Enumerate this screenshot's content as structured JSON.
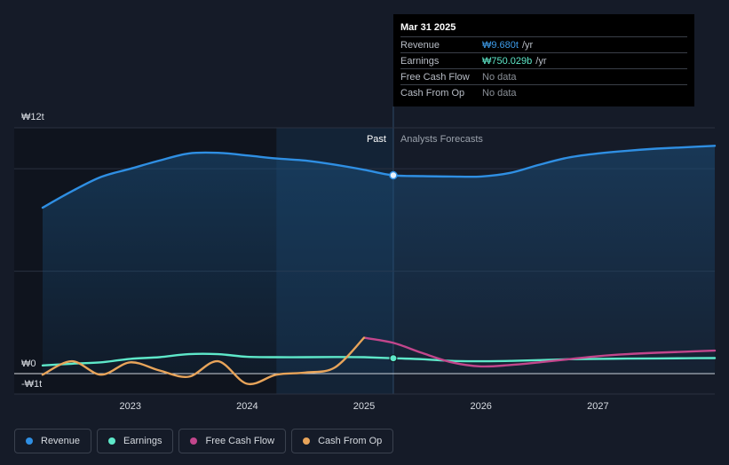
{
  "tooltip": {
    "date": "Mar 31 2025",
    "rows": [
      {
        "label": "Revenue",
        "value": "₩9.680t",
        "unit": "/yr"
      },
      {
        "label": "Earnings",
        "value": "₩750.029b",
        "unit": "/yr"
      },
      {
        "label": "Free Cash Flow",
        "value": "No data",
        "unit": ""
      },
      {
        "label": "Cash From Op",
        "value": "No data",
        "unit": ""
      }
    ]
  },
  "legend": [
    {
      "label": "Revenue",
      "color": "#2f8fe3"
    },
    {
      "label": "Earnings",
      "color": "#5ee8c9"
    },
    {
      "label": "Free Cash Flow",
      "color": "#c2468c"
    },
    {
      "label": "Cash From Op",
      "color": "#e8a45a"
    }
  ],
  "chart_data": {
    "type": "line",
    "y_tick_labels": [
      "₩12t",
      "₩0",
      "-₩1t"
    ],
    "x_tick_labels": [
      "2023",
      "2024",
      "2025",
      "2026",
      "2027"
    ],
    "ylim": [
      -1,
      12
    ],
    "xlim": [
      2022.25,
      2028.0
    ],
    "region_labels": {
      "past": "Past",
      "forecast": "Analysts Forecasts"
    },
    "past_forecast_boundary": 2025.25,
    "highlight_band": [
      2024.25,
      2025.25
    ],
    "series": [
      {
        "name": "Revenue",
        "color": "#2f8fe3",
        "points": [
          [
            2022.25,
            8.1
          ],
          [
            2022.5,
            8.9
          ],
          [
            2022.75,
            9.6
          ],
          [
            2023.0,
            10.0
          ],
          [
            2023.25,
            10.4
          ],
          [
            2023.5,
            10.75
          ],
          [
            2023.75,
            10.78
          ],
          [
            2024.0,
            10.65
          ],
          [
            2024.25,
            10.5
          ],
          [
            2024.5,
            10.4
          ],
          [
            2024.75,
            10.2
          ],
          [
            2025.0,
            9.95
          ],
          [
            2025.25,
            9.68
          ],
          [
            2025.5,
            9.64
          ],
          [
            2025.75,
            9.62
          ],
          [
            2026.0,
            9.62
          ],
          [
            2026.25,
            9.8
          ],
          [
            2026.5,
            10.2
          ],
          [
            2026.75,
            10.55
          ],
          [
            2027.0,
            10.75
          ],
          [
            2027.25,
            10.88
          ],
          [
            2027.5,
            10.98
          ],
          [
            2027.75,
            11.05
          ],
          [
            2028.0,
            11.12
          ]
        ]
      },
      {
        "name": "Earnings",
        "color": "#5ee8c9",
        "points": [
          [
            2022.25,
            0.4
          ],
          [
            2022.5,
            0.48
          ],
          [
            2022.75,
            0.55
          ],
          [
            2023.0,
            0.72
          ],
          [
            2023.25,
            0.8
          ],
          [
            2023.5,
            0.95
          ],
          [
            2023.75,
            0.95
          ],
          [
            2024.0,
            0.82
          ],
          [
            2024.25,
            0.8
          ],
          [
            2024.5,
            0.8
          ],
          [
            2024.75,
            0.81
          ],
          [
            2025.0,
            0.8
          ],
          [
            2025.25,
            0.75
          ],
          [
            2025.5,
            0.7
          ],
          [
            2025.75,
            0.62
          ],
          [
            2026.0,
            0.6
          ],
          [
            2026.25,
            0.62
          ],
          [
            2026.5,
            0.66
          ],
          [
            2026.75,
            0.7
          ],
          [
            2027.0,
            0.72
          ],
          [
            2027.25,
            0.73
          ],
          [
            2027.5,
            0.74
          ],
          [
            2027.75,
            0.75
          ],
          [
            2028.0,
            0.76
          ]
        ]
      },
      {
        "name": "Free Cash Flow",
        "color": "#c2468c",
        "points": [
          [
            2025.0,
            1.75
          ],
          [
            2025.25,
            1.5
          ],
          [
            2025.5,
            1.0
          ],
          [
            2025.75,
            0.55
          ],
          [
            2026.0,
            0.35
          ],
          [
            2026.25,
            0.42
          ],
          [
            2026.5,
            0.55
          ],
          [
            2026.75,
            0.7
          ],
          [
            2027.0,
            0.85
          ],
          [
            2027.25,
            0.95
          ],
          [
            2027.5,
            1.02
          ],
          [
            2027.75,
            1.07
          ],
          [
            2028.0,
            1.12
          ]
        ]
      },
      {
        "name": "Cash From Op",
        "color": "#e8a45a",
        "points": [
          [
            2022.25,
            -0.05
          ],
          [
            2022.5,
            0.6
          ],
          [
            2022.75,
            -0.05
          ],
          [
            2023.0,
            0.55
          ],
          [
            2023.25,
            0.15
          ],
          [
            2023.5,
            -0.15
          ],
          [
            2023.75,
            0.6
          ],
          [
            2024.0,
            -0.5
          ],
          [
            2024.25,
            -0.05
          ],
          [
            2024.5,
            0.05
          ],
          [
            2024.75,
            0.3
          ],
          [
            2025.0,
            1.75
          ]
        ]
      }
    ]
  }
}
